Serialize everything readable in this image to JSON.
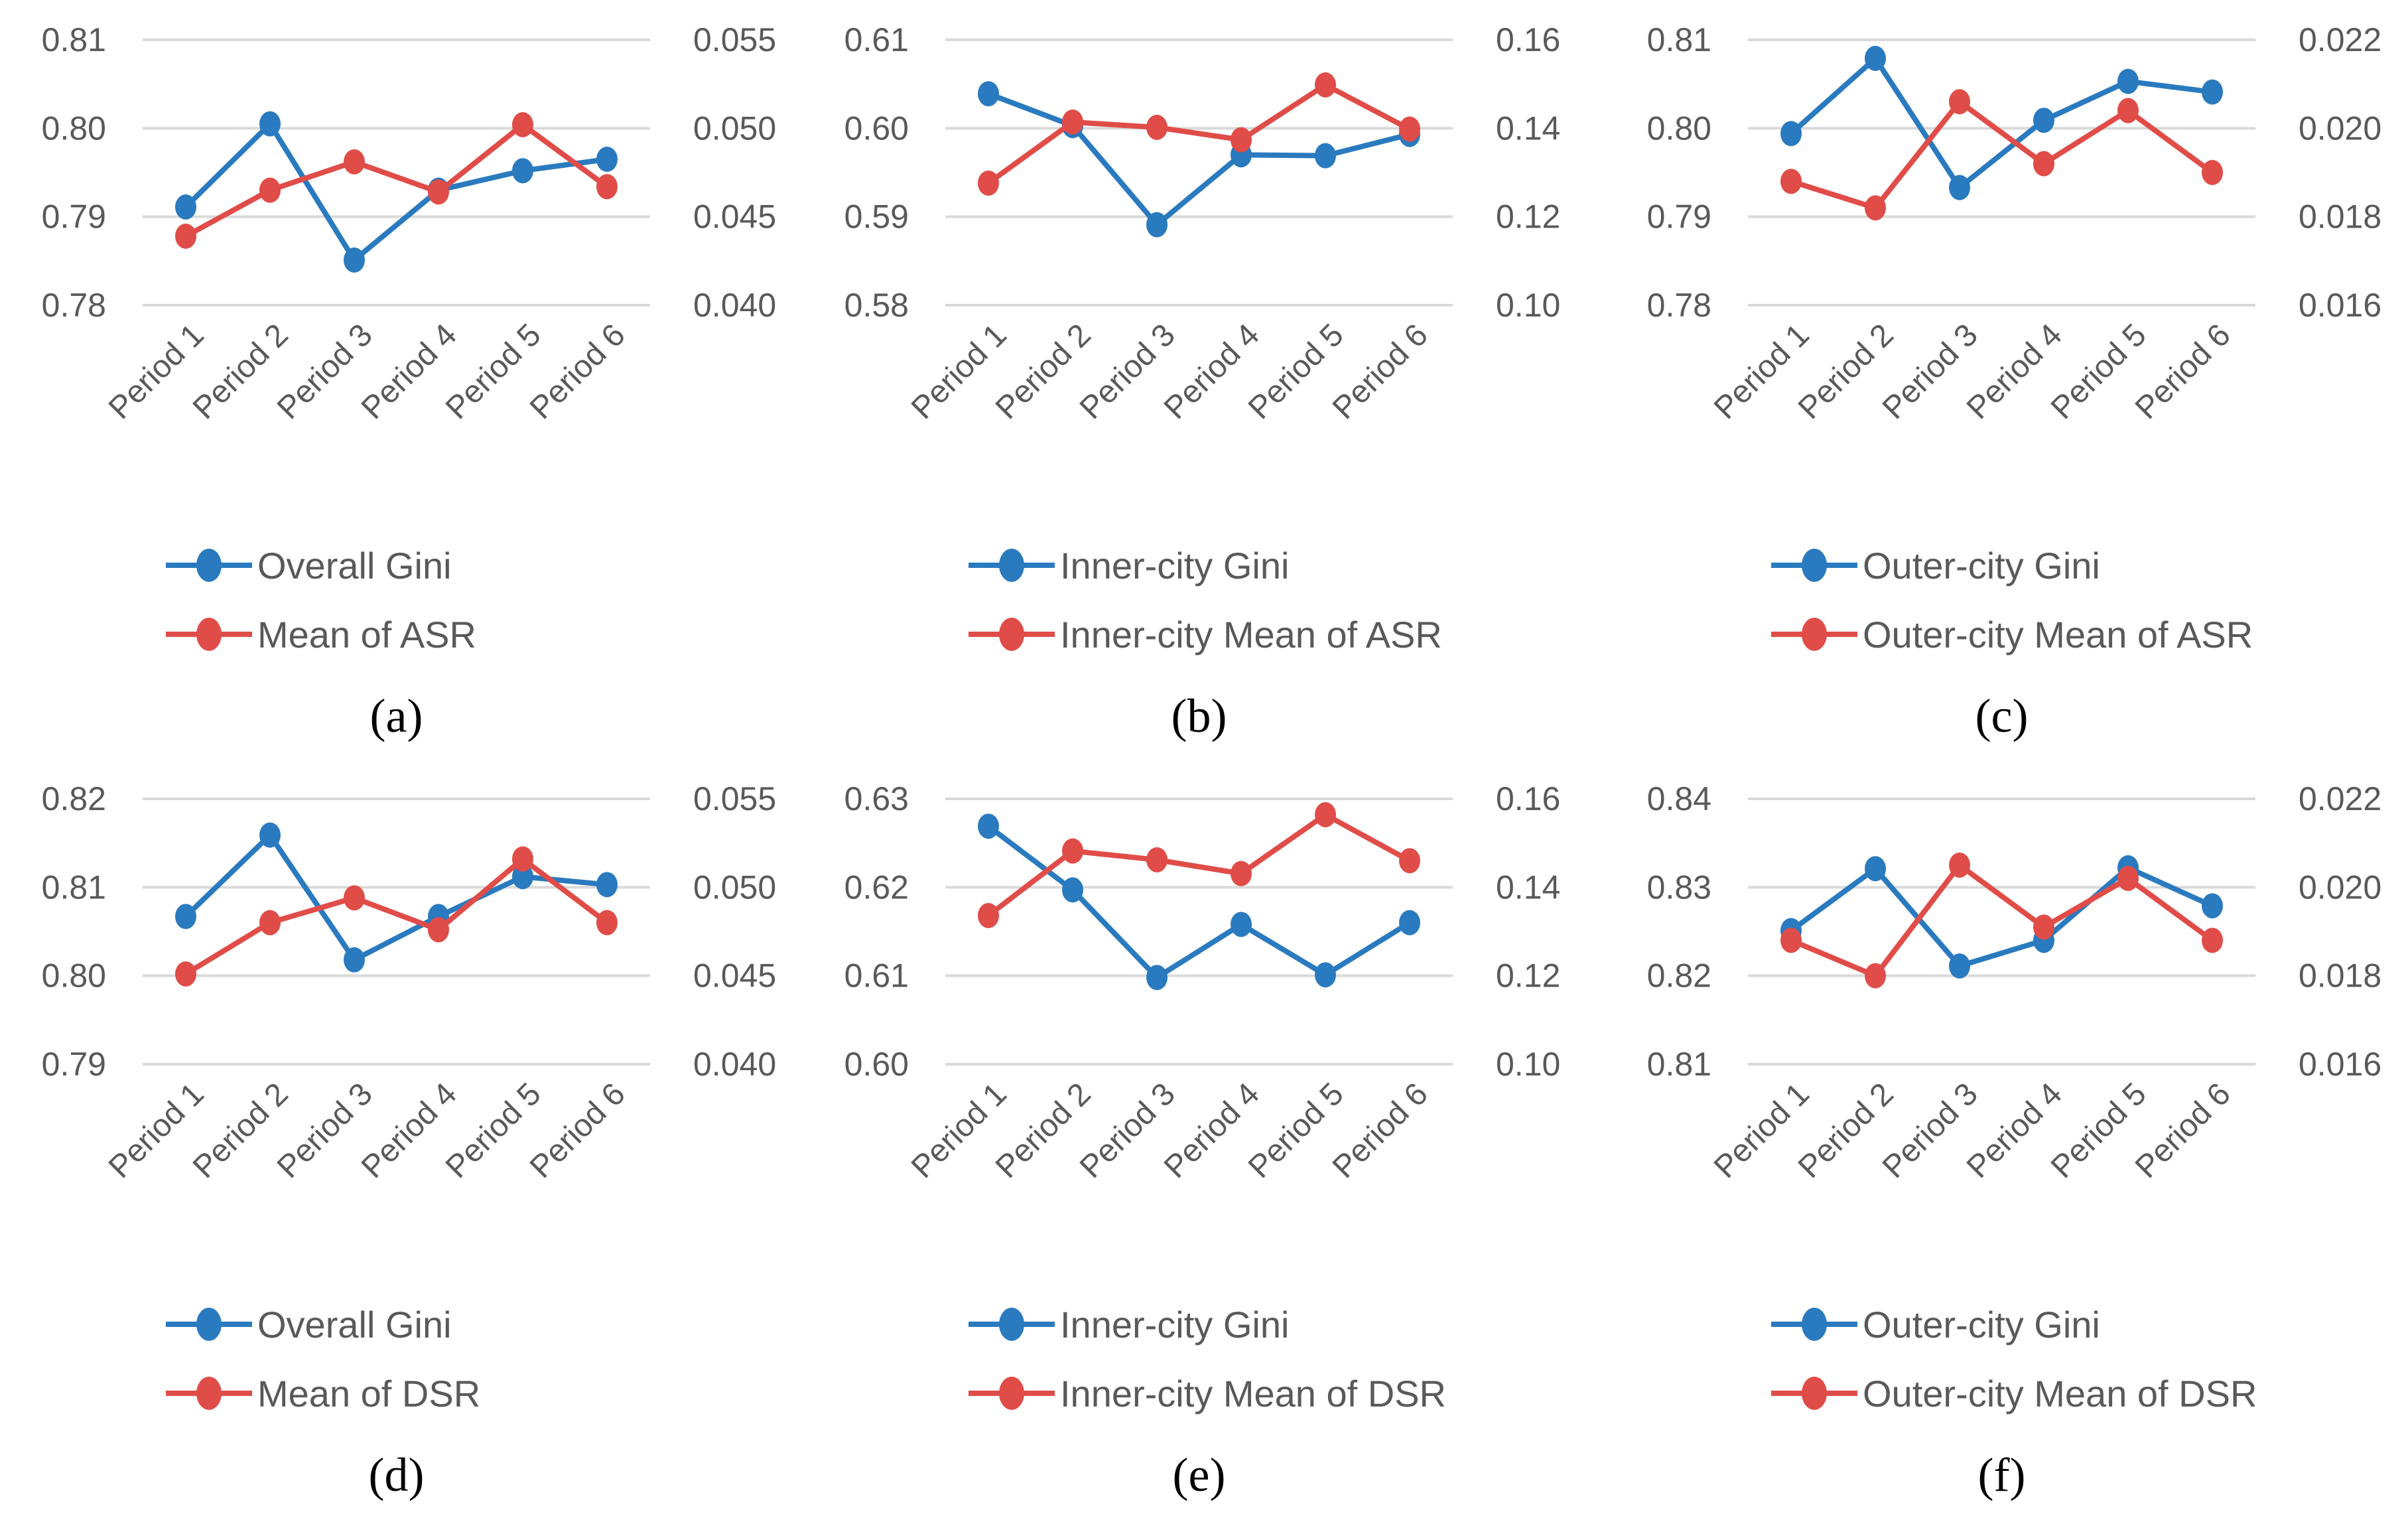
{
  "styles": {
    "blue": "#2A7ABF",
    "red": "#E04C48",
    "grid_color": "#D9D9D9",
    "axis_text_color": "#595959",
    "caption_color": "#000000"
  },
  "categories": [
    "Period 1",
    "Period 2",
    "Period 3",
    "Period 4",
    "Period 5",
    "Period 6"
  ],
  "chart_data": [
    {
      "type": "line",
      "caption": "(a)",
      "left_axis": {
        "min": 0.78,
        "max": 0.81,
        "ticks": [
          "0.81",
          "0.80",
          "0.79",
          "0.78"
        ]
      },
      "right_axis": {
        "min": 0.04,
        "max": 0.055,
        "ticks": [
          "0.055",
          "0.050",
          "0.045",
          "0.040"
        ]
      },
      "series": [
        {
          "name": "Overall Gini",
          "color": "blue",
          "axis": "left",
          "values": [
            0.7911,
            0.8005,
            0.7851,
            0.793,
            0.7952,
            0.7965
          ]
        },
        {
          "name": "Mean of ASR",
          "color": "red",
          "axis": "right",
          "values": [
            0.0439,
            0.0465,
            0.0481,
            0.0464,
            0.0502,
            0.0467
          ]
        }
      ]
    },
    {
      "type": "line",
      "caption": "(b)",
      "left_axis": {
        "min": 0.58,
        "max": 0.61,
        "ticks": [
          "0.61",
          "0.60",
          "0.59",
          "0.58"
        ]
      },
      "right_axis": {
        "min": 0.1,
        "max": 0.16,
        "ticks": [
          "0.16",
          "0.14",
          "0.12",
          "0.10"
        ]
      },
      "series": [
        {
          "name": "Inner-city Gini",
          "color": "blue",
          "axis": "left",
          "values": [
            0.6039,
            0.6003,
            0.5891,
            0.597,
            0.5969,
            0.5993
          ]
        },
        {
          "name": "Inner-city Mean of ASR",
          "color": "red",
          "axis": "right",
          "values": [
            0.1276,
            0.1414,
            0.1402,
            0.1374,
            0.1498,
            0.1398
          ]
        }
      ]
    },
    {
      "type": "line",
      "caption": "(c)",
      "left_axis": {
        "min": 0.78,
        "max": 0.81,
        "ticks": [
          "0.81",
          "0.80",
          "0.79",
          "0.78"
        ]
      },
      "right_axis": {
        "min": 0.016,
        "max": 0.022,
        "ticks": [
          "0.022",
          "0.020",
          "0.018",
          "0.016"
        ]
      },
      "series": [
        {
          "name": "Outer-city Gini",
          "color": "blue",
          "axis": "left",
          "values": [
            0.7994,
            0.8079,
            0.7933,
            0.8009,
            0.8053,
            0.8041
          ]
        },
        {
          "name": "Outer-city Mean of ASR",
          "color": "red",
          "axis": "right",
          "values": [
            0.0188,
            0.0182,
            0.0206,
            0.0192,
            0.0204,
            0.019
          ]
        }
      ]
    },
    {
      "type": "line",
      "caption": "(d)",
      "left_axis": {
        "min": 0.79,
        "max": 0.82,
        "ticks": [
          "0.82",
          "0.81",
          "0.80",
          "0.79"
        ]
      },
      "right_axis": {
        "min": 0.04,
        "max": 0.055,
        "ticks": [
          "0.055",
          "0.050",
          "0.045",
          "0.040"
        ]
      },
      "series": [
        {
          "name": "Overall Gini",
          "color": "blue",
          "axis": "left",
          "values": [
            0.8067,
            0.8159,
            0.8018,
            0.8067,
            0.8112,
            0.8103
          ]
        },
        {
          "name": "Mean of DSR",
          "color": "red",
          "axis": "right",
          "values": [
            0.0451,
            0.048,
            0.0494,
            0.0476,
            0.0516,
            0.048
          ]
        }
      ]
    },
    {
      "type": "line",
      "caption": "(e)",
      "left_axis": {
        "min": 0.6,
        "max": 0.63,
        "ticks": [
          "0.63",
          "0.62",
          "0.61",
          "0.60"
        ]
      },
      "right_axis": {
        "min": 0.1,
        "max": 0.16,
        "ticks": [
          "0.16",
          "0.14",
          "0.12",
          "0.10"
        ]
      },
      "series": [
        {
          "name": "Inner-city Gini",
          "color": "blue",
          "axis": "left",
          "values": [
            0.6269,
            0.6197,
            0.6098,
            0.6158,
            0.6101,
            0.616
          ]
        },
        {
          "name": "Inner-city Mean of DSR",
          "color": "red",
          "axis": "right",
          "values": [
            0.1336,
            0.1482,
            0.1462,
            0.1431,
            0.1564,
            0.146
          ]
        }
      ]
    },
    {
      "type": "line",
      "caption": "(f)",
      "left_axis": {
        "min": 0.81,
        "max": 0.84,
        "ticks": [
          "0.84",
          "0.83",
          "0.82",
          "0.81"
        ]
      },
      "right_axis": {
        "min": 0.016,
        "max": 0.022,
        "ticks": [
          "0.022",
          "0.020",
          "0.018",
          "0.016"
        ]
      },
      "series": [
        {
          "name": "Outer-city Gini",
          "color": "blue",
          "axis": "left",
          "values": [
            0.8251,
            0.8321,
            0.8211,
            0.824,
            0.8322,
            0.8279
          ]
        },
        {
          "name": "Outer-city Mean of DSR",
          "color": "red",
          "axis": "right",
          "values": [
            0.0188,
            0.018,
            0.0205,
            0.0191,
            0.0202,
            0.0188
          ]
        }
      ]
    }
  ]
}
